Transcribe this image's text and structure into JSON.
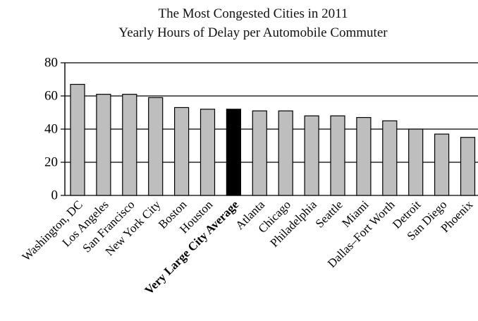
{
  "chart_data": {
    "type": "bar",
    "title": "The Most Congested Cities in 2011",
    "subtitle": "Yearly Hours of Delay per Automobile Commuter",
    "xlabel": "",
    "ylabel": "",
    "ylim": [
      0,
      80
    ],
    "yticks": [
      0,
      20,
      40,
      60,
      80
    ],
    "grid": true,
    "legend": "none",
    "categories": [
      "Washington, DC",
      "Los Angeles",
      "San Francisco",
      "New York City",
      "Boston",
      "Houston",
      "Very Large City Average",
      "Atlanta",
      "Chicago",
      "Philadelphia",
      "Seattle",
      "Miami",
      "Dallas–Fort Worth",
      "Detroit",
      "San Diego",
      "Phoenix"
    ],
    "values": [
      67,
      61,
      61,
      59,
      53,
      52,
      52,
      51,
      51,
      48,
      48,
      47,
      45,
      40,
      37,
      35
    ],
    "highlight": [
      false,
      false,
      false,
      false,
      false,
      false,
      true,
      false,
      false,
      false,
      false,
      false,
      false,
      false,
      false,
      false
    ],
    "colors": {
      "bar": "#bebebe",
      "highlight": "#000000",
      "stroke": "#000000",
      "grid": "#000000"
    }
  }
}
